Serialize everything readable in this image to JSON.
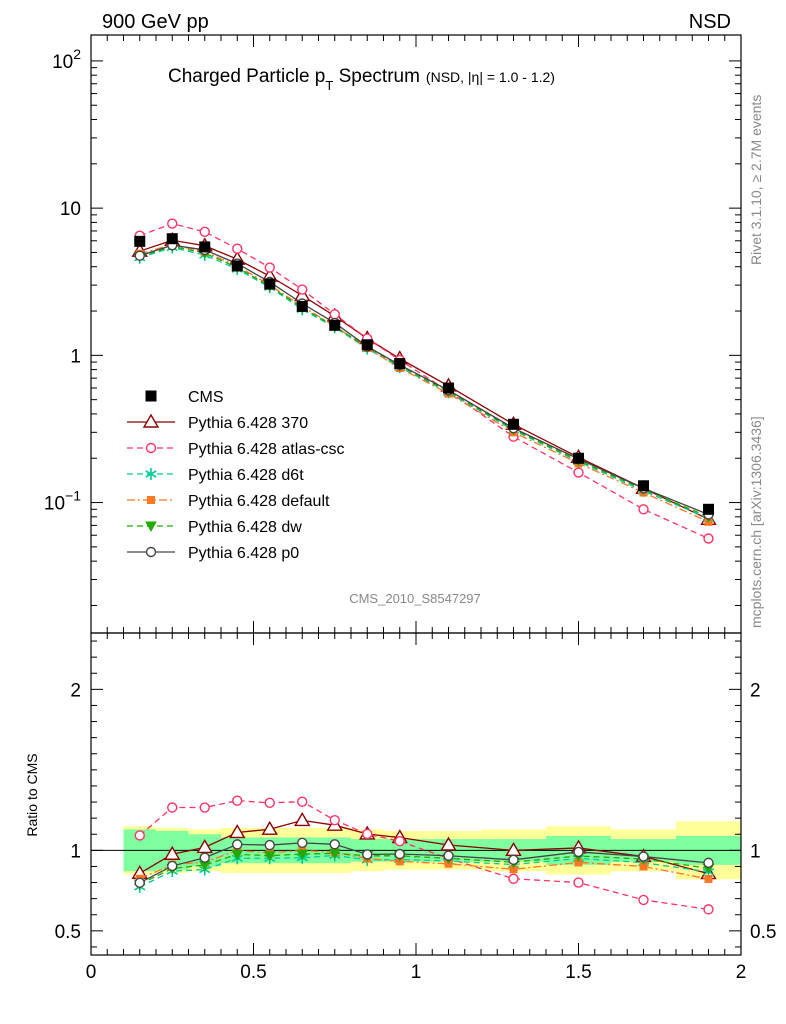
{
  "header": {
    "left": "900 GeV pp",
    "right": "NSD"
  },
  "chart_data": {
    "type": "line",
    "title_main": "Charged Particle p",
    "title_sub": "T",
    "title_word": " Spectrum",
    "title_note": "(NSD, |η| = 1.0 - 1.2)",
    "side_label_top": "Rivet 3.1.10, ≥ 2.7M events",
    "side_label_bottom": "mcplots.cern.ch [arXiv:1306.3436]",
    "watermark": "CMS_2010_S8547297",
    "ratio_ylabel": "Ratio to CMS",
    "x": [
      0.15,
      0.25,
      0.35,
      0.45,
      0.55,
      0.65,
      0.75,
      0.85,
      0.95,
      1.1,
      1.3,
      1.5,
      1.7,
      1.9
    ],
    "xlim": [
      0,
      2
    ],
    "ylim": [
      0.013,
      150
    ],
    "yscale": "log",
    "ratio_ylim": [
      0.35,
      2.35
    ],
    "x_ticks": [
      "0",
      "0.5",
      "1",
      "1.5",
      "2"
    ],
    "y_ticks": [
      "10^-1",
      "1",
      "10",
      "10^2"
    ],
    "ratio_ticks": [
      "0.5",
      "1",
      "2"
    ],
    "colors": {
      "band_inner": "#7fff9f",
      "band_outer": "#ffff99"
    },
    "data": {
      "name": "CMS",
      "values": [
        5.95,
        6.2,
        5.45,
        4.05,
        3.05,
        2.15,
        1.6,
        1.18,
        0.88,
        0.6,
        0.34,
        0.2,
        0.13,
        0.09
      ]
    },
    "band_inner": [
      0.13,
      0.12,
      0.1,
      0.08,
      0.08,
      0.08,
      0.08,
      0.07,
      0.07,
      0.07,
      0.07,
      0.09,
      0.07,
      0.09
    ],
    "band_outer": [
      0.15,
      0.14,
      0.13,
      0.14,
      0.14,
      0.14,
      0.14,
      0.13,
      0.12,
      0.12,
      0.13,
      0.15,
      0.13,
      0.18
    ],
    "series": [
      {
        "name": "Pythia 6.428 370",
        "color": "#8b0000",
        "dash": "",
        "marker": "triangle-open",
        "values": [
          5.1,
          6.05,
          5.55,
          4.5,
          3.45,
          2.55,
          1.85,
          1.3,
          0.95,
          0.62,
          0.34,
          0.203,
          0.125,
          0.077
        ]
      },
      {
        "name": "Pythia 6.428 atlas-csc",
        "color": "#ff3366",
        "dash": "6,4",
        "marker": "circle-open",
        "values": [
          6.5,
          7.85,
          6.9,
          5.3,
          3.95,
          2.8,
          1.9,
          1.3,
          0.93,
          0.57,
          0.28,
          0.16,
          0.09,
          0.057
        ]
      },
      {
        "name": "Pythia 6.428 d6t",
        "color": "#00cc99",
        "dash": "6,4",
        "marker": "star",
        "values": [
          4.6,
          5.4,
          4.8,
          3.85,
          2.9,
          2.05,
          1.55,
          1.11,
          0.83,
          0.56,
          0.31,
          0.19,
          0.12,
          0.078
        ]
      },
      {
        "name": "Pythia 6.428 default",
        "color": "#ff7722",
        "dash": "8,3,2,3",
        "marker": "square",
        "values": [
          4.9,
          5.65,
          5.05,
          4.05,
          3.0,
          2.15,
          1.58,
          1.12,
          0.82,
          0.55,
          0.3,
          0.185,
          0.117,
          0.074
        ]
      },
      {
        "name": "Pythia 6.428 dw",
        "color": "#22aa00",
        "dash": "6,4",
        "marker": "triangle-down",
        "values": [
          4.7,
          5.5,
          4.95,
          3.95,
          2.95,
          2.1,
          1.57,
          1.14,
          0.85,
          0.57,
          0.315,
          0.193,
          0.123,
          0.08
        ]
      },
      {
        "name": "Pythia 6.428 p0",
        "color": "#444444",
        "dash": "",
        "marker": "circle-open",
        "values": [
          4.75,
          5.6,
          5.2,
          4.2,
          3.15,
          2.25,
          1.66,
          1.15,
          0.86,
          0.58,
          0.32,
          0.198,
          0.125,
          0.083
        ]
      }
    ],
    "legend_position": "middle-left"
  }
}
